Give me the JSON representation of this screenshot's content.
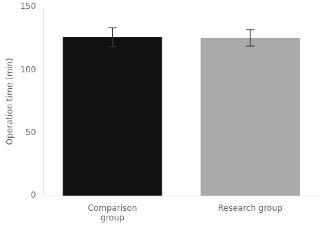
{
  "chart_data": {
    "type": "bar",
    "categories": [
      "Comparison\ngroup",
      "Research group"
    ],
    "values": [
      126.0,
      125.5
    ],
    "errors": [
      7.5,
      6.5
    ],
    "colors": [
      "#111111",
      "#aaaaaa"
    ],
    "ylabel": "Operation time (min)",
    "ylim": [
      0,
      150
    ],
    "yticks": [
      0,
      50,
      100,
      150
    ],
    "grid": false
  }
}
